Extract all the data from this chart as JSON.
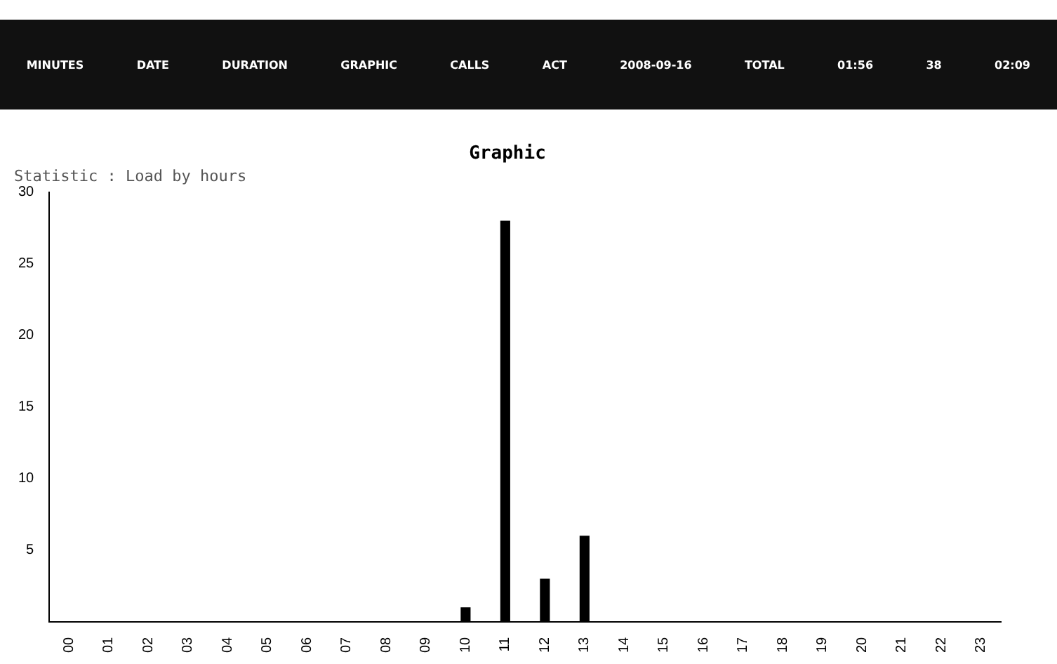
{
  "chart_data": {
    "type": "bar",
    "title": "Graphic",
    "subtitle": "Statistic : Load by hours",
    "categories": [
      "00",
      "01",
      "02",
      "03",
      "04",
      "05",
      "06",
      "07",
      "08",
      "09",
      "10",
      "11",
      "12",
      "13",
      "14",
      "15",
      "16",
      "17",
      "18",
      "19",
      "20",
      "21",
      "22",
      "23"
    ],
    "values": [
      0,
      0,
      0,
      0,
      0,
      0,
      0,
      0,
      0,
      0,
      1,
      28,
      3,
      6,
      0,
      0,
      0,
      0,
      0,
      0,
      0,
      0,
      0,
      0
    ],
    "color": "#000000",
    "ylim": [
      0,
      30
    ],
    "yticks": [
      5,
      10,
      15,
      20,
      25,
      30
    ],
    "grid": false,
    "legend": false,
    "annotations": [
      "MINUTES",
      "DATE",
      "DURATION",
      "GRAPHIC",
      "CALLS",
      "ACT",
      "2008-09-16",
      "TOTAL",
      "01:56",
      "38",
      "02:09"
    ]
  }
}
